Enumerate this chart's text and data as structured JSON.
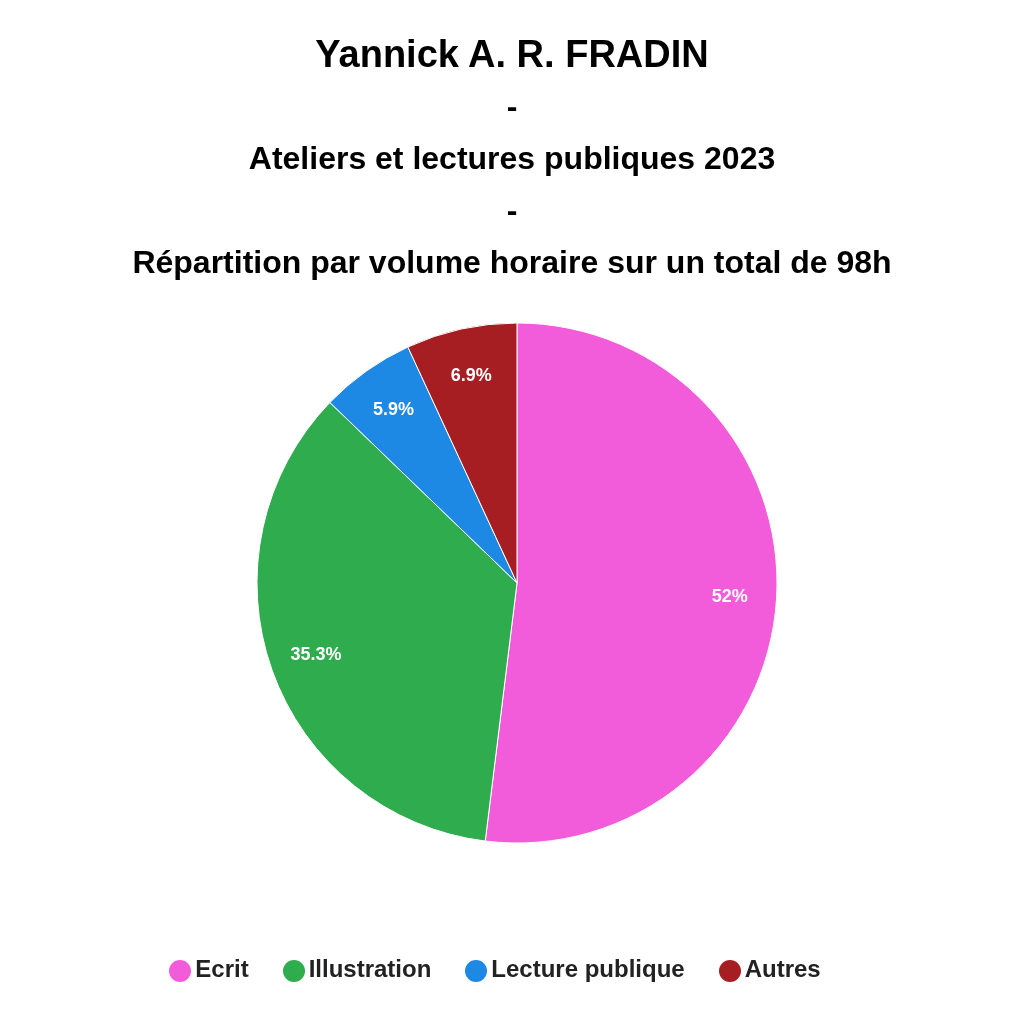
{
  "chart_data": {
    "type": "pie",
    "title": "Yannick A. R. FRADIN\n-\nAteliers et lectures publiques 2023\n-\nRépartition par volume horaire sur un total de 98h",
    "categories": [
      "Ecrit",
      "Illustration",
      "Lecture publique",
      "Autres"
    ],
    "values": [
      52,
      35.3,
      5.9,
      6.9
    ],
    "value_labels": [
      "52%",
      "35.3%",
      "5.9%",
      "6.9%"
    ],
    "colors": [
      "#f25bd9",
      "#2eac4e",
      "#1e88e5",
      "#a61e22"
    ],
    "legend": "bottom"
  }
}
